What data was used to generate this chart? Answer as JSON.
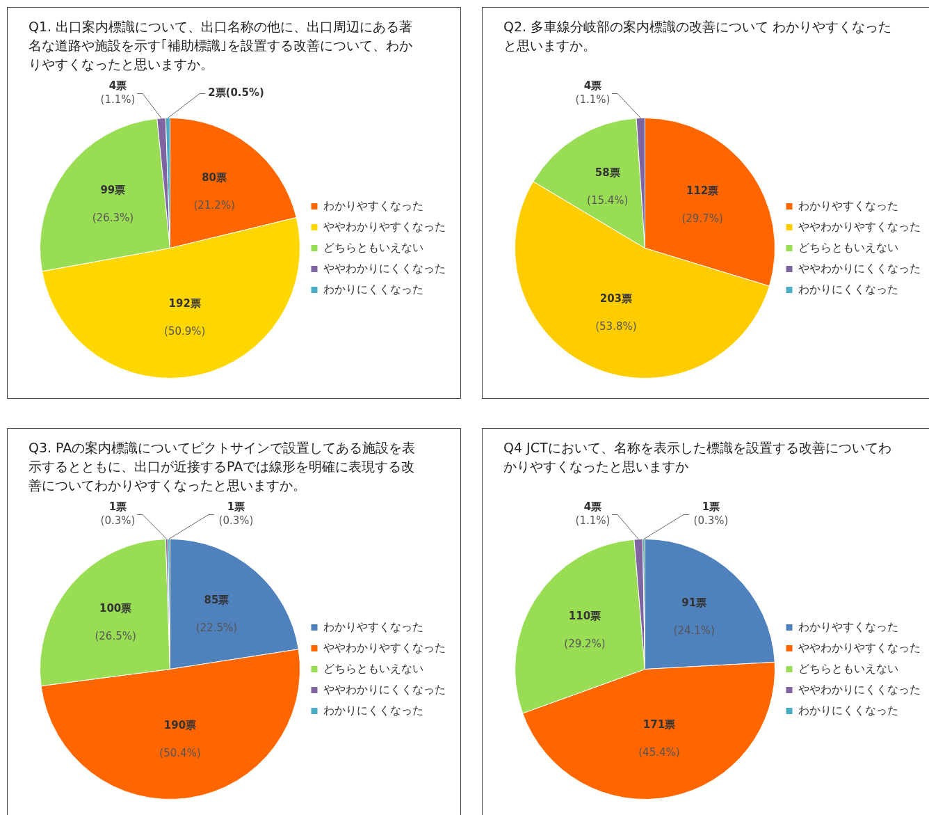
{
  "chart_data": [
    {
      "type": "pie",
      "title": "Q1. 出口案内標識について、出口名称の他に、出口周辺にある著名な道路や施設を示す｢補助標識｣を設置する改善について、わかりやすくなったと思いますか。",
      "categories": [
        "わかりやすくなった",
        "ややわかりやすくなった",
        "どちらともいえない",
        "ややわかりにくくなった",
        "わかりにくくなった"
      ],
      "values": [
        80,
        192,
        99,
        4,
        2
      ],
      "colors": [
        "#ff6600",
        "#ffd700",
        "#99dd55",
        "#8064a2",
        "#4bacc6"
      ],
      "value_labels": [
        "80票\n(21.2%)",
        "192票\n(50.9%)",
        "99票\n(26.3%)",
        "4票\n(1.1%)",
        "2票(0.5%)"
      ],
      "legend": "right"
    },
    {
      "type": "pie",
      "title": "Q2. 多車線分岐部の案内標識の改善について わかりやすくなったと思いますか。",
      "categories": [
        "わかりやすくなった",
        "ややわかりやすくなった",
        "どちらともいえない",
        "ややわかりにくくなった",
        "わかりにくくなった"
      ],
      "values": [
        112,
        203,
        58,
        4,
        0
      ],
      "colors": [
        "#ff6600",
        "#ffcc00",
        "#99dd55",
        "#8064a2",
        "#4bacc6"
      ],
      "value_labels": [
        "112票\n(29.7%)",
        "203票\n(53.8%)",
        "58票\n(15.4%)",
        "4票\n(1.1%)",
        null
      ],
      "legend": "right"
    },
    {
      "type": "pie",
      "title": "Q3. PAの案内標識についてピクトサインで設置してある施設を表示するとともに、出口が近接するPAでは線形を明確に表現する改善についてわかりやすくなったと思いますか。",
      "categories": [
        "わかりやすくなった",
        "ややわかりやすくなった",
        "どちらともいえない",
        "ややわかりにくくなった",
        "わかりにくくなった"
      ],
      "values": [
        85,
        190,
        100,
        1,
        1
      ],
      "colors": [
        "#4f81bd",
        "#ff6600",
        "#99dd55",
        "#8064a2",
        "#4bacc6"
      ],
      "value_labels": [
        "85票\n(22.5%)",
        "190票\n(50.4%)",
        "100票\n(26.5%)",
        "1票\n(0.3%)",
        "1票\n(0.3%)"
      ],
      "legend": "right"
    },
    {
      "type": "pie",
      "title": "Q4 JCTにおいて、名称を表示した標識を設置する改善についてわかりやすくなったと思いますか",
      "categories": [
        "わかりやすくなった",
        "ややわかりやすくなった",
        "どちらともいえない",
        "ややわかりにくくなった",
        "わかりにくくなった"
      ],
      "values": [
        91,
        171,
        110,
        4,
        1
      ],
      "colors": [
        "#4f81bd",
        "#ff6600",
        "#99dd55",
        "#8064a2",
        "#4bacc6"
      ],
      "value_labels": [
        "91票\n(24.1%)",
        "171票\n(45.4%)",
        "110票\n(29.2%)",
        "4票\n(1.1%)",
        "1票\n(0.3%)"
      ],
      "legend": "right"
    }
  ]
}
